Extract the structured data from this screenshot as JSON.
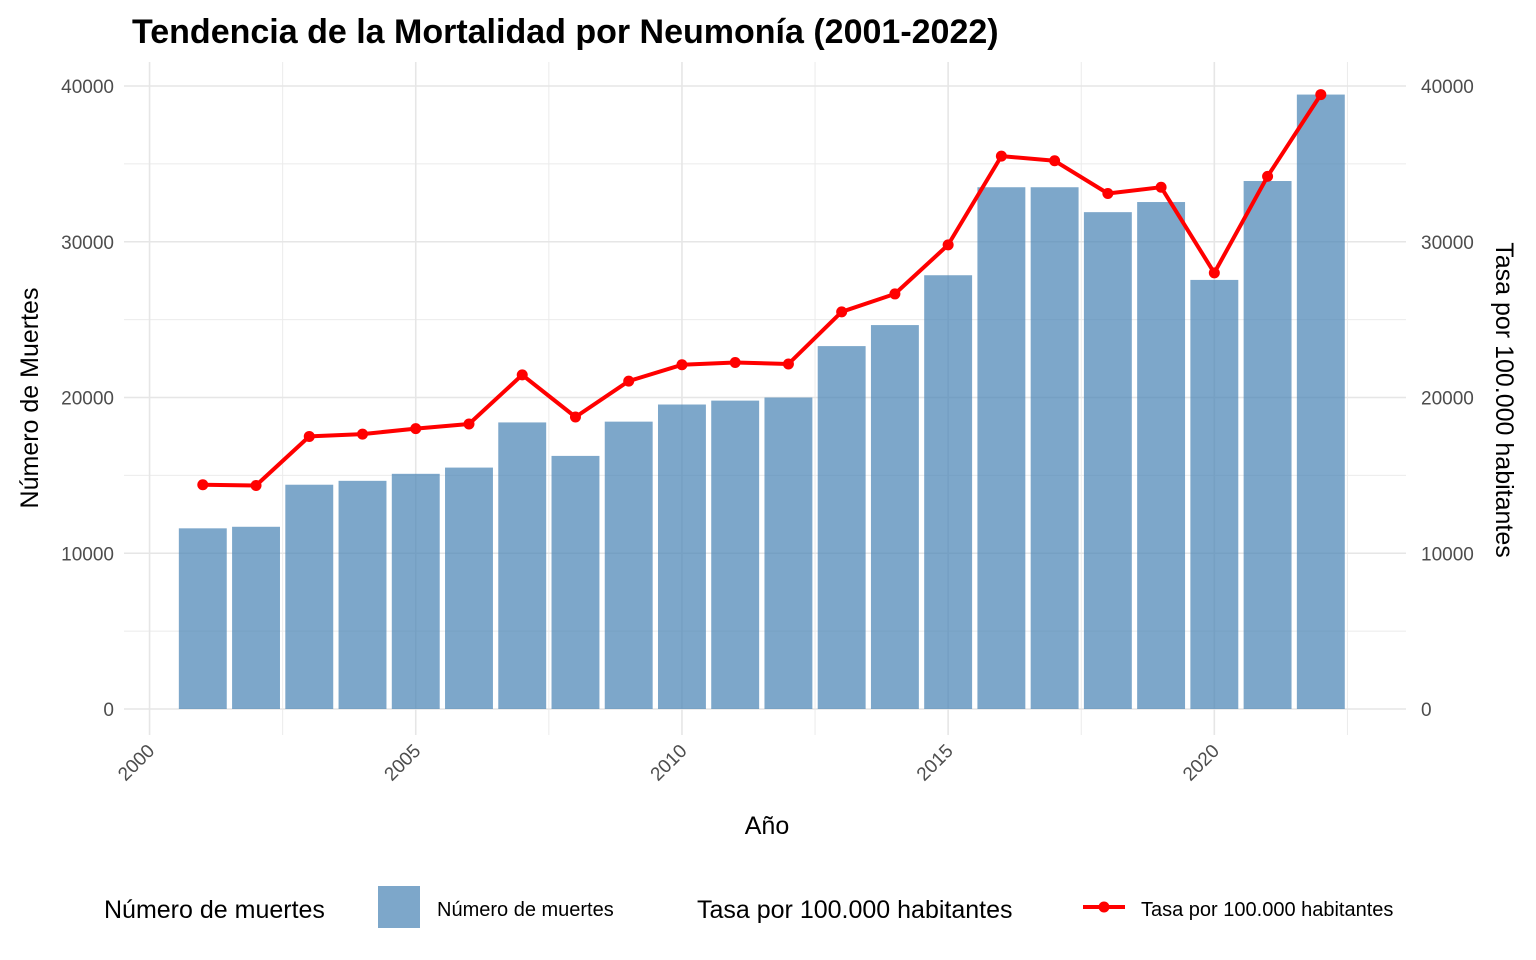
{
  "chart_data": {
    "type": "bar",
    "title": "Tendencia de la Mortalidad por Neumonía (2001-2022)",
    "xlabel": "Año",
    "ylabel": "Número de Muertes",
    "ylabel_right": "Tasa por 100.000 habitantes",
    "xlim": [
      2000,
      2022.5
    ],
    "ylim": [
      0,
      40000
    ],
    "x_ticks": [
      2000,
      2005,
      2010,
      2015,
      2020
    ],
    "y_ticks": [
      0,
      10000,
      20000,
      30000,
      40000
    ],
    "grid": true,
    "legend_position": "bottom",
    "categories": [
      2001,
      2002,
      2003,
      2004,
      2005,
      2006,
      2007,
      2008,
      2009,
      2010,
      2011,
      2012,
      2013,
      2014,
      2015,
      2016,
      2017,
      2018,
      2019,
      2020,
      2021,
      2022
    ],
    "series": [
      {
        "name": "Número de muertes",
        "kind": "bar",
        "color": "#4682b4",
        "values": [
          11600,
          11700,
          14400,
          14650,
          15100,
          15500,
          18400,
          16250,
          18450,
          19550,
          19800,
          20000,
          23300,
          24650,
          27850,
          33500,
          33500,
          31900,
          32550,
          27550,
          33900,
          39450
        ]
      },
      {
        "name": "Tasa por 100.000 habitantes",
        "kind": "line",
        "color": "#ff0000",
        "values": [
          14400,
          14350,
          17500,
          17650,
          18000,
          18300,
          21450,
          18750,
          21050,
          22100,
          22250,
          22150,
          25500,
          26650,
          29800,
          35500,
          35200,
          33100,
          33500,
          28000,
          34200,
          39450
        ]
      }
    ],
    "legend": [
      {
        "title": "Número de muertes",
        "label": "Número de muertes"
      },
      {
        "title": "Tasa por 100.000 habitantes",
        "label": "Tasa por 100.000 habitantes"
      }
    ]
  }
}
